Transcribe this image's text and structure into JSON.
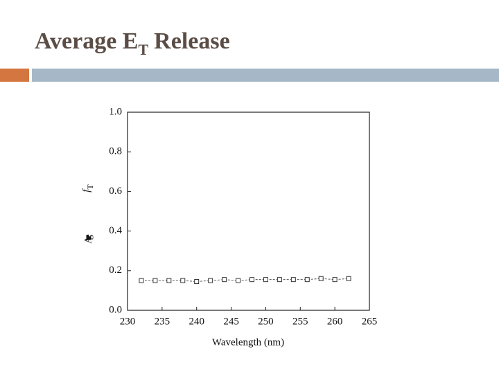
{
  "chart_data": {
    "type": "line",
    "title": "Average E",
    "title_subscript": "T",
    "title_rest": "Release",
    "ylabel": "f",
    "ylabel_subscript": "T",
    "ylabel_extra": "Average",
    "xlabel": "Wavelength (nm)",
    "x": [
      232,
      234,
      236,
      238,
      240,
      242,
      244,
      246,
      248,
      250,
      252,
      254,
      256,
      258,
      260,
      262
    ],
    "values": [
      0.15,
      0.15,
      0.15,
      0.15,
      0.145,
      0.15,
      0.155,
      0.15,
      0.155,
      0.155,
      0.155,
      0.155,
      0.155,
      0.16,
      0.155,
      0.16
    ],
    "color": "#333333",
    "xlim": [
      230,
      265
    ],
    "xticks": [
      230,
      235,
      240,
      245,
      250,
      255,
      260,
      265
    ],
    "ylim": [
      0,
      1
    ],
    "yticks": [
      {
        "value": 0,
        "label": "0.0"
      },
      0.2,
      0.4,
      0.6,
      0.8,
      {
        "value": 1,
        "label": "1.0"
      }
    ],
    "grid": false
  }
}
